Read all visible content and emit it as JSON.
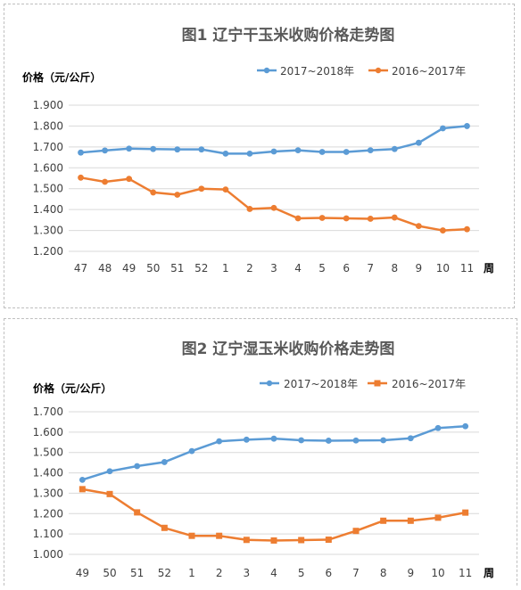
{
  "chart_data": [
    {
      "type": "line",
      "title": "图1 辽宁干玉米收购价格走势图",
      "ylabel": "价格（元/公斤）",
      "xlabel": "周",
      "categories": [
        "47",
        "48",
        "49",
        "50",
        "51",
        "52",
        "1",
        "2",
        "3",
        "4",
        "5",
        "6",
        "7",
        "8",
        "9",
        "10",
        "11"
      ],
      "ylim": [
        1.2,
        1.9
      ],
      "yticks": [
        "1.200",
        "1.300",
        "1.400",
        "1.500",
        "1.600",
        "1.700",
        "1.800",
        "1.900"
      ],
      "grid": true,
      "legend_position": "top-right",
      "series": [
        {
          "name": "2017~2018年",
          "color": "#5b9bd5",
          "marker": "circle",
          "values": [
            1.673,
            1.683,
            1.692,
            1.69,
            1.688,
            1.688,
            1.668,
            1.668,
            1.678,
            1.684,
            1.676,
            1.676,
            1.684,
            1.69,
            1.72,
            1.789,
            1.8
          ]
        },
        {
          "name": "2016~2017年",
          "color": "#ed7d31",
          "marker": "circle",
          "values": [
            1.553,
            1.533,
            1.547,
            1.482,
            1.471,
            1.5,
            1.496,
            1.403,
            1.408,
            1.358,
            1.36,
            1.358,
            1.356,
            1.362,
            1.321,
            1.3,
            1.306
          ]
        }
      ]
    },
    {
      "type": "line",
      "title": "图2 辽宁湿玉米收购价格走势图",
      "ylabel": "价格（元/公斤）",
      "xlabel": "周",
      "categories": [
        "49",
        "50",
        "51",
        "52",
        "1",
        "2",
        "3",
        "4",
        "5",
        "6",
        "7",
        "8",
        "9",
        "10",
        "11"
      ],
      "ylim": [
        1.0,
        1.7
      ],
      "yticks": [
        "1.000",
        "1.100",
        "1.200",
        "1.300",
        "1.400",
        "1.500",
        "1.600",
        "1.700"
      ],
      "grid": true,
      "legend_position": "top-right",
      "series": [
        {
          "name": "2017~2018年",
          "color": "#5b9bd5",
          "marker": "circle",
          "values": [
            1.366,
            1.408,
            1.433,
            1.453,
            1.507,
            1.555,
            1.563,
            1.568,
            1.56,
            1.558,
            1.559,
            1.56,
            1.57,
            1.62,
            1.629
          ]
        },
        {
          "name": "2016~2017年",
          "color": "#ed7d31",
          "marker": "square",
          "values": [
            1.32,
            1.296,
            1.206,
            1.13,
            1.091,
            1.091,
            1.071,
            1.068,
            1.07,
            1.072,
            1.115,
            1.165,
            1.165,
            1.18,
            1.205
          ]
        }
      ]
    }
  ]
}
